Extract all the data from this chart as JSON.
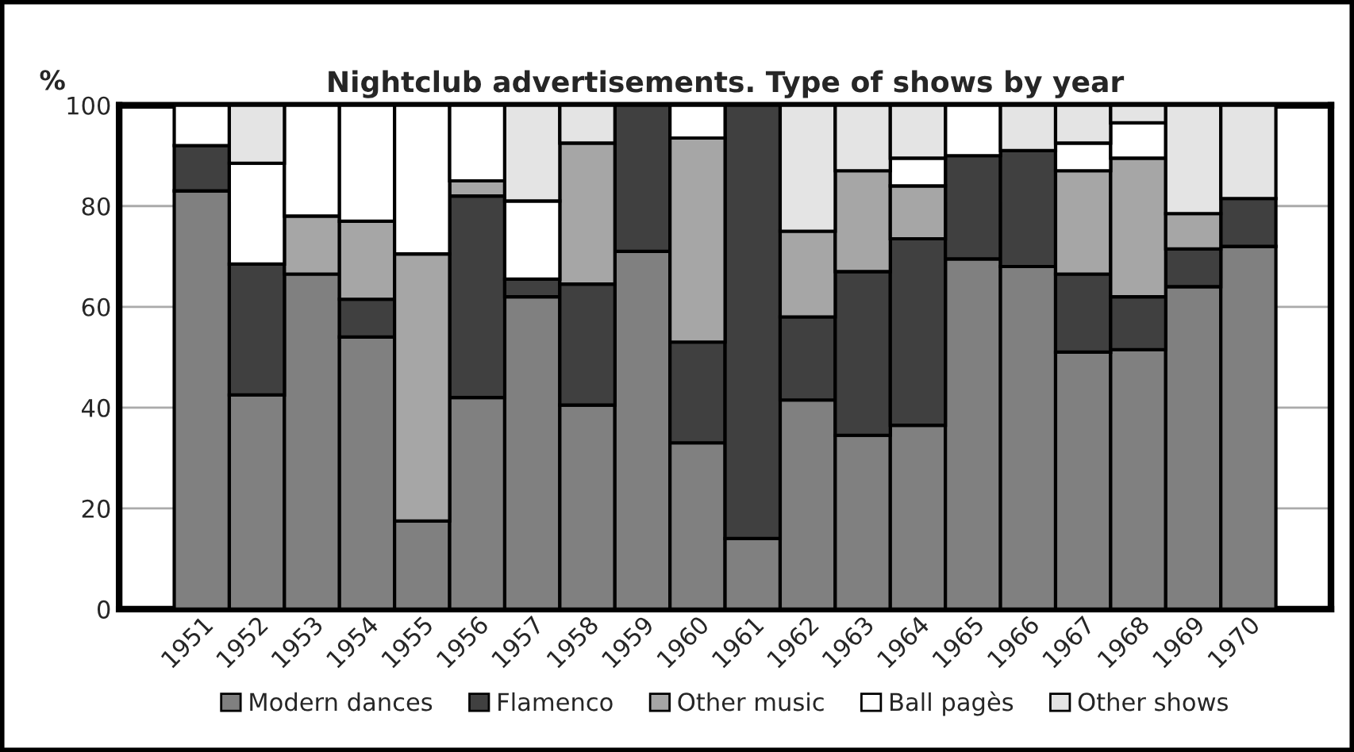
{
  "chart_data": {
    "type": "bar",
    "title": "Nightclub advertisements. Type of shows by year",
    "ylabel": "%",
    "categories": [
      null,
      "1951",
      "1952",
      "1953",
      "1954",
      "1955",
      "1956",
      "1957",
      "1958",
      "1959",
      "1960",
      "1961",
      "1962",
      "1963",
      "1964",
      "1965",
      "1966",
      "1967",
      "1968",
      "1969",
      "1970",
      null
    ],
    "stacked": true,
    "ylim": [
      0,
      100
    ],
    "yticks": [
      0,
      20,
      40,
      60,
      80,
      100
    ],
    "grid": "y",
    "legend": "bottom",
    "series": [
      {
        "name": "Modern dances",
        "color": "#808080",
        "values": [
          null,
          83,
          42.5,
          66.5,
          54,
          17.5,
          42,
          62,
          40.5,
          71,
          33,
          14,
          41.5,
          34.5,
          36.5,
          69.5,
          68,
          51,
          51.5,
          64,
          72,
          null
        ]
      },
      {
        "name": "Flamenco",
        "color": "#404040",
        "values": [
          null,
          9,
          26,
          0,
          7.5,
          0,
          40,
          3.5,
          24,
          29,
          20,
          86,
          16.5,
          32.5,
          37,
          20.5,
          23,
          15.5,
          10.5,
          7.5,
          9.5,
          null
        ]
      },
      {
        "name": "Other music",
        "color": "#a6a6a6",
        "values": [
          null,
          0,
          0,
          11.5,
          15.5,
          53,
          3,
          0,
          28,
          0,
          40.5,
          0,
          17,
          20,
          10.5,
          0,
          0,
          20.5,
          27.5,
          7,
          0,
          null
        ]
      },
      {
        "name": "Ball pagès",
        "color": "#ffffff",
        "values": [
          null,
          8,
          20,
          22,
          23,
          29.5,
          15,
          15.5,
          0,
          0,
          6.5,
          0,
          0,
          0,
          5.5,
          10,
          0,
          5.5,
          7,
          0,
          0,
          null
        ]
      },
      {
        "name": "Other shows",
        "color": "#e4e4e4",
        "values": [
          null,
          0,
          11.5,
          0,
          0,
          0,
          0,
          19,
          7.5,
          0,
          0,
          0,
          25,
          13,
          10.5,
          0,
          9,
          7.5,
          3.5,
          21.5,
          18.5,
          null
        ]
      }
    ]
  }
}
